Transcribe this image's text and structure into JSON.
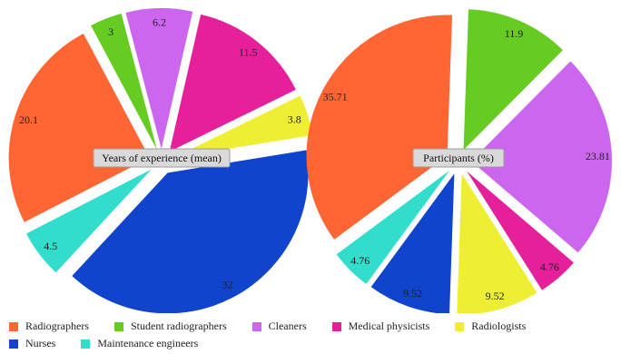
{
  "chart_data": [
    {
      "type": "pie",
      "title": "Years of experience (mean)",
      "slices": [
        {
          "category": "Student radiographers",
          "value": 3,
          "label": "3",
          "color": "#66cc22"
        },
        {
          "category": "Cleaners",
          "value": 6.2,
          "label": "6.2",
          "color": "#cc66ee"
        },
        {
          "category": "Medical physicists",
          "value": 11.5,
          "label": "11.5",
          "color": "#e6209a"
        },
        {
          "category": "Radiologists",
          "value": 3.8,
          "label": "3.8",
          "color": "#eeee33"
        },
        {
          "category": "Nurses",
          "value": 32,
          "label": "32",
          "color": "#1144cc"
        },
        {
          "category": "Maintenance engineers",
          "value": 4.5,
          "label": "4.5",
          "color": "#33ddcc"
        },
        {
          "category": "Radiographers",
          "value": 20.1,
          "label": "20.1",
          "color": "#ff6633"
        }
      ]
    },
    {
      "type": "pie",
      "title": "Participants (%)",
      "slices": [
        {
          "category": "Student radiographers",
          "value": 11.9,
          "label": "11.9",
          "color": "#66cc22"
        },
        {
          "category": "Cleaners",
          "value": 23.81,
          "label": "23.81",
          "color": "#cc66ee"
        },
        {
          "category": "Medical physicists",
          "value": 4.76,
          "label": "4.76",
          "color": "#e6209a"
        },
        {
          "category": "Radiologists",
          "value": 9.52,
          "label": "9.52",
          "color": "#eeee33"
        },
        {
          "category": "Nurses",
          "value": 9.52,
          "label": "9.52",
          "color": "#1144cc"
        },
        {
          "category": "Maintenance engineers",
          "value": 4.76,
          "label": "4.76",
          "color": "#33ddcc"
        },
        {
          "category": "Radiographers",
          "value": 35.71,
          "label": "35.71",
          "color": "#ff6633"
        }
      ]
    }
  ],
  "legend": [
    {
      "label": "Radiographers",
      "color": "#ff6633"
    },
    {
      "label": "Student radiographers",
      "color": "#66cc22"
    },
    {
      "label": "Cleaners",
      "color": "#cc66ee"
    },
    {
      "label": "Medical physicists",
      "color": "#e6209a"
    },
    {
      "label": "Radiologists",
      "color": "#eeee33"
    },
    {
      "label": "Nurses",
      "color": "#1144cc"
    },
    {
      "label": "Maintenance engineers",
      "color": "#33ddcc"
    }
  ]
}
